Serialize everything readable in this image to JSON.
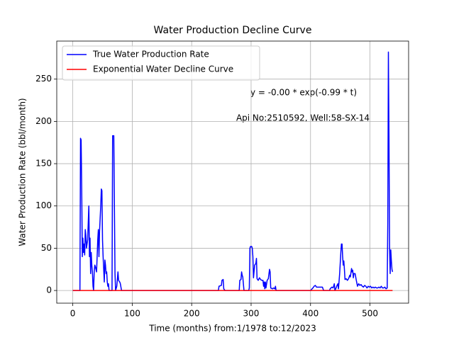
{
  "chart_data": {
    "type": "line",
    "title": "Water Production Decline Curve",
    "x_label": "Time (months) from:1/1978 to:12/2023",
    "y_label": "Water Production Rate (bbl/month)",
    "annotations": [
      "y = -0.00 * exp(-0.99 * t)",
      "Api No:2510592, Well:58-SX-14"
    ],
    "xlim": [
      -27,
      565
    ],
    "ylim": [
      -15,
      295
    ],
    "xticks": [
      0,
      100,
      200,
      300,
      400,
      500
    ],
    "yticks": [
      0,
      50,
      100,
      150,
      200,
      250
    ],
    "grid": true,
    "legend": "upper left",
    "series": [
      {
        "name": "True Water Production Rate",
        "color": "#0000ff",
        "x": [
          0,
          12,
          13,
          14,
          15,
          16,
          17,
          18,
          19,
          20,
          21,
          22,
          23,
          25,
          27,
          28,
          29,
          30,
          31,
          32,
          33,
          34,
          35,
          36,
          37,
          38,
          40,
          42,
          43,
          44,
          45,
          47,
          48,
          49,
          50,
          51,
          52,
          53,
          54,
          55,
          56,
          57,
          58,
          59,
          60,
          61,
          66,
          67,
          69,
          70,
          71,
          72,
          74,
          76,
          77,
          79,
          80,
          82,
          245,
          246,
          250,
          251,
          253,
          254,
          256,
          280,
          281,
          283,
          284,
          285,
          286,
          287,
          288,
          296,
          297,
          298,
          299,
          301,
          302,
          303,
          304,
          306,
          308,
          309,
          310,
          312,
          314,
          316,
          318,
          320,
          321,
          322,
          323,
          324,
          325,
          327,
          329,
          331,
          332,
          333,
          336,
          338,
          340,
          341,
          342,
          400,
          404,
          406,
          408,
          410,
          414,
          418,
          420,
          422,
          432,
          433,
          436,
          438,
          440,
          441,
          443,
          444,
          446,
          447,
          449,
          451,
          452,
          453,
          454,
          455,
          456,
          457,
          458,
          460,
          462,
          464,
          466,
          467,
          469,
          470,
          471,
          472,
          473,
          475,
          477,
          479,
          481,
          483,
          485,
          487,
          489,
          491,
          493,
          495,
          497,
          499,
          501,
          503,
          505,
          507,
          509,
          511,
          513,
          515,
          517,
          519,
          521,
          523,
          525,
          527,
          529,
          530,
          531,
          532,
          533,
          534,
          535,
          536,
          537,
          538
        ],
        "values": [
          0,
          0,
          180,
          178,
          120,
          40,
          62,
          45,
          55,
          42,
          72,
          65,
          50,
          60,
          100,
          40,
          62,
          20,
          45,
          30,
          22,
          5,
          0,
          22,
          30,
          28,
          22,
          60,
          72,
          40,
          70,
          100,
          120,
          118,
          60,
          40,
          25,
          10,
          36,
          30,
          20,
          22,
          10,
          5,
          8,
          0,
          0,
          183,
          183,
          100,
          20,
          0,
          5,
          22,
          12,
          10,
          8,
          0,
          0,
          5,
          6,
          12,
          13,
          2,
          0,
          0,
          12,
          13,
          22,
          18,
          16,
          8,
          0,
          0,
          3,
          50,
          52,
          52,
          50,
          40,
          15,
          30,
          32,
          38,
          14,
          12,
          15,
          13,
          12,
          12,
          5,
          10,
          2,
          10,
          3,
          12,
          14,
          25,
          22,
          3,
          2,
          3,
          2,
          5,
          0,
          0,
          3,
          5,
          6,
          4,
          4,
          4,
          4,
          0,
          0,
          2,
          4,
          3,
          8,
          0,
          3,
          5,
          8,
          2,
          20,
          45,
          55,
          55,
          40,
          30,
          35,
          25,
          13,
          14,
          12,
          14,
          18,
          16,
          26,
          22,
          24,
          15,
          20,
          20,
          12,
          5,
          8,
          6,
          7,
          5,
          4,
          6,
          5,
          3,
          5,
          4,
          5,
          3,
          4,
          3,
          4,
          3,
          3,
          4,
          3,
          5,
          3,
          3,
          4,
          2,
          3,
          80,
          282,
          180,
          50,
          20,
          48,
          35,
          25,
          22
        ]
      },
      {
        "name": "Exponential Water Decline Curve",
        "color": "#ff0000",
        "x": [
          0,
          538
        ],
        "values": [
          0,
          0
        ]
      }
    ]
  }
}
